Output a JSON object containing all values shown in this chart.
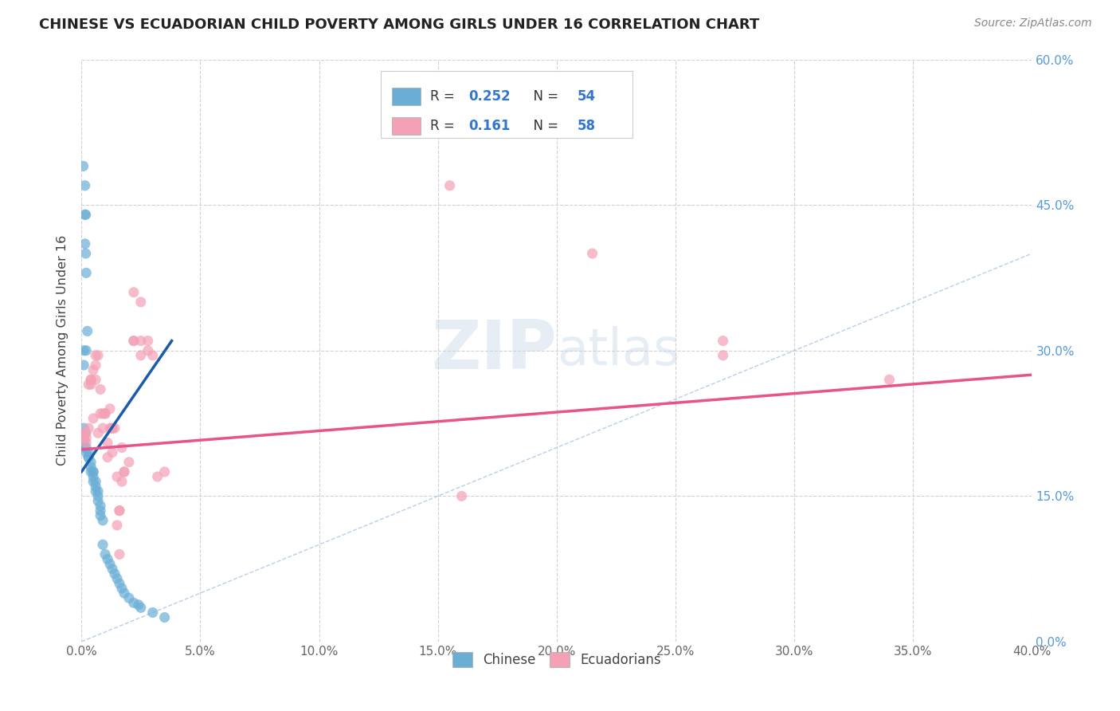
{
  "title": "CHINESE VS ECUADORIAN CHILD POVERTY AMONG GIRLS UNDER 16 CORRELATION CHART",
  "source": "Source: ZipAtlas.com",
  "ylabel": "Child Poverty Among Girls Under 16",
  "xlim": [
    0.0,
    0.4
  ],
  "ylim": [
    0.0,
    0.6
  ],
  "xtick_vals": [
    0.0,
    0.05,
    0.1,
    0.15,
    0.2,
    0.25,
    0.3,
    0.35,
    0.4
  ],
  "xtick_labels": [
    "0.0%",
    "5.0%",
    "10.0%",
    "15.0%",
    "20.0%",
    "25.0%",
    "30.0%",
    "35.0%",
    "40.0%"
  ],
  "ytick_vals": [
    0.0,
    0.15,
    0.3,
    0.45,
    0.6
  ],
  "ytick_labels": [
    "0.0%",
    "15.0%",
    "30.0%",
    "45.0%",
    "60.0%"
  ],
  "watermark_zip": "ZIP",
  "watermark_atlas": "atlas",
  "chinese_color": "#6aaed6",
  "ecuadorian_color": "#f4a0b5",
  "trendline1_color": "#1a5ca8",
  "trendline2_color": "#e8538a",
  "dashed_line_color": "#a8c4e0",
  "legend_box_color": "#ffffff",
  "legend_edge_color": "#cccccc",
  "r_n_color": "#3377cc",
  "label_color": "#444444",
  "grid_color": "#cccccc",
  "right_tick_color": "#5599dd",
  "chinese_scatter": [
    [
      0.0008,
      0.49
    ],
    [
      0.0015,
      0.47
    ],
    [
      0.0015,
      0.44
    ],
    [
      0.0018,
      0.44
    ],
    [
      0.0015,
      0.41
    ],
    [
      0.0018,
      0.4
    ],
    [
      0.002,
      0.38
    ],
    [
      0.0025,
      0.32
    ],
    [
      0.001,
      0.3
    ],
    [
      0.002,
      0.3
    ],
    [
      0.001,
      0.285
    ],
    [
      0.001,
      0.22
    ],
    [
      0.0015,
      0.215
    ],
    [
      0.001,
      0.21
    ],
    [
      0.001,
      0.205
    ],
    [
      0.001,
      0.2
    ],
    [
      0.002,
      0.2
    ],
    [
      0.002,
      0.195
    ],
    [
      0.003,
      0.195
    ],
    [
      0.003,
      0.19
    ],
    [
      0.003,
      0.19
    ],
    [
      0.004,
      0.185
    ],
    [
      0.004,
      0.18
    ],
    [
      0.004,
      0.175
    ],
    [
      0.005,
      0.175
    ],
    [
      0.005,
      0.175
    ],
    [
      0.005,
      0.17
    ],
    [
      0.005,
      0.165
    ],
    [
      0.006,
      0.165
    ],
    [
      0.006,
      0.16
    ],
    [
      0.006,
      0.155
    ],
    [
      0.007,
      0.155
    ],
    [
      0.007,
      0.15
    ],
    [
      0.007,
      0.145
    ],
    [
      0.008,
      0.14
    ],
    [
      0.008,
      0.135
    ],
    [
      0.008,
      0.13
    ],
    [
      0.009,
      0.125
    ],
    [
      0.009,
      0.1
    ],
    [
      0.01,
      0.09
    ],
    [
      0.011,
      0.085
    ],
    [
      0.012,
      0.08
    ],
    [
      0.013,
      0.075
    ],
    [
      0.014,
      0.07
    ],
    [
      0.015,
      0.065
    ],
    [
      0.016,
      0.06
    ],
    [
      0.017,
      0.055
    ],
    [
      0.018,
      0.05
    ],
    [
      0.02,
      0.045
    ],
    [
      0.022,
      0.04
    ],
    [
      0.024,
      0.038
    ],
    [
      0.025,
      0.035
    ],
    [
      0.03,
      0.03
    ],
    [
      0.035,
      0.025
    ]
  ],
  "ecuadorian_scatter": [
    [
      0.001,
      0.215
    ],
    [
      0.001,
      0.21
    ],
    [
      0.002,
      0.215
    ],
    [
      0.002,
      0.21
    ],
    [
      0.002,
      0.205
    ],
    [
      0.003,
      0.22
    ],
    [
      0.003,
      0.265
    ],
    [
      0.004,
      0.265
    ],
    [
      0.004,
      0.27
    ],
    [
      0.004,
      0.27
    ],
    [
      0.005,
      0.28
    ],
    [
      0.005,
      0.23
    ],
    [
      0.006,
      0.295
    ],
    [
      0.006,
      0.285
    ],
    [
      0.006,
      0.27
    ],
    [
      0.007,
      0.295
    ],
    [
      0.007,
      0.215
    ],
    [
      0.008,
      0.26
    ],
    [
      0.008,
      0.235
    ],
    [
      0.009,
      0.235
    ],
    [
      0.009,
      0.22
    ],
    [
      0.01,
      0.235
    ],
    [
      0.01,
      0.235
    ],
    [
      0.011,
      0.205
    ],
    [
      0.011,
      0.19
    ],
    [
      0.012,
      0.24
    ],
    [
      0.012,
      0.22
    ],
    [
      0.013,
      0.195
    ],
    [
      0.013,
      0.22
    ],
    [
      0.013,
      0.22
    ],
    [
      0.014,
      0.22
    ],
    [
      0.015,
      0.17
    ],
    [
      0.015,
      0.12
    ],
    [
      0.016,
      0.135
    ],
    [
      0.016,
      0.135
    ],
    [
      0.016,
      0.09
    ],
    [
      0.017,
      0.165
    ],
    [
      0.017,
      0.2
    ],
    [
      0.018,
      0.175
    ],
    [
      0.018,
      0.175
    ],
    [
      0.02,
      0.185
    ],
    [
      0.022,
      0.36
    ],
    [
      0.022,
      0.31
    ],
    [
      0.022,
      0.31
    ],
    [
      0.025,
      0.31
    ],
    [
      0.025,
      0.295
    ],
    [
      0.025,
      0.35
    ],
    [
      0.028,
      0.31
    ],
    [
      0.028,
      0.3
    ],
    [
      0.03,
      0.295
    ],
    [
      0.032,
      0.17
    ],
    [
      0.035,
      0.175
    ],
    [
      0.155,
      0.47
    ],
    [
      0.16,
      0.15
    ],
    [
      0.215,
      0.4
    ],
    [
      0.27,
      0.31
    ],
    [
      0.27,
      0.295
    ],
    [
      0.34,
      0.27
    ]
  ],
  "trendline1_x": [
    0.0,
    0.038
  ],
  "trendline1_y": [
    0.175,
    0.31
  ],
  "trendline2_x": [
    0.0,
    0.4
  ],
  "trendline2_y": [
    0.198,
    0.275
  ],
  "dashed_line_x": [
    0.0,
    0.6
  ],
  "dashed_line_y": [
    0.0,
    0.6
  ]
}
